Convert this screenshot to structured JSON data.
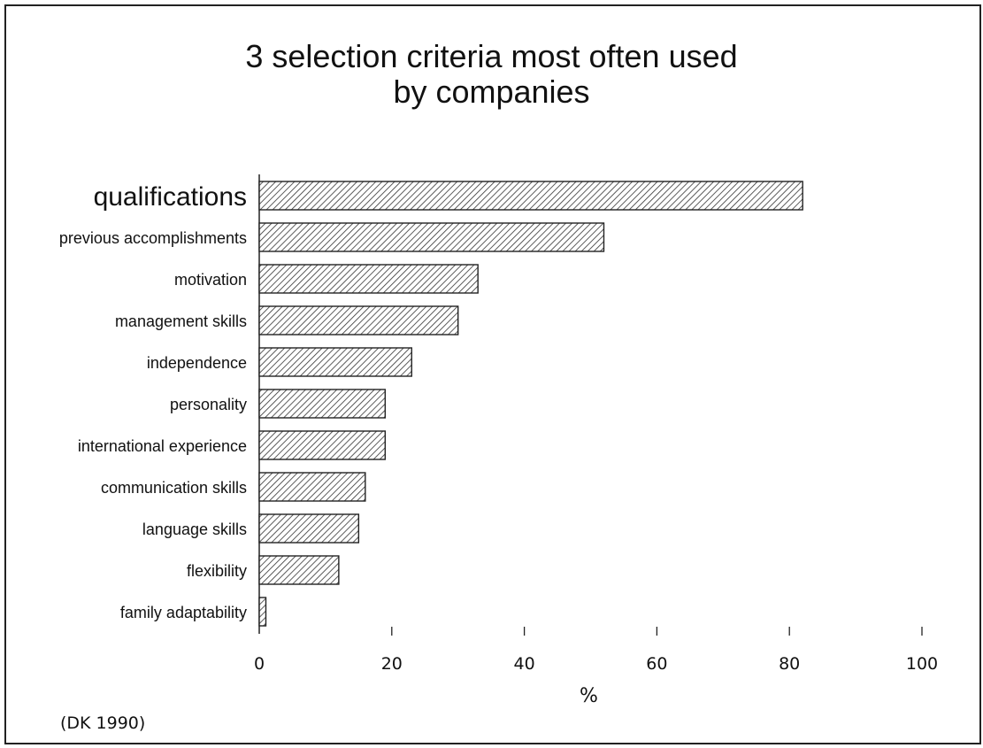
{
  "chart_data": {
    "type": "bar",
    "orientation": "horizontal",
    "title_lines": [
      "3 selection criteria most often used",
      "by companies"
    ],
    "categories": [
      "qualifications",
      "previous accomplishments",
      "motivation",
      "management skills",
      "independence",
      "personality",
      "international experience",
      "communication skills",
      "language skills",
      "flexibility",
      "family adaptability"
    ],
    "values": [
      82,
      52,
      33,
      30,
      23,
      19,
      19,
      16,
      15,
      12,
      1
    ],
    "xlabel": "%",
    "xlim": [
      0,
      100
    ],
    "xticks": [
      0,
      20,
      40,
      60,
      80,
      100
    ],
    "grid": false,
    "legend": "none",
    "bar_fill": "hatched",
    "colors": {
      "bar_stroke": "#222222",
      "hatch": "#333333",
      "text": "#111111"
    }
  },
  "source_note": "(DK 1990)"
}
